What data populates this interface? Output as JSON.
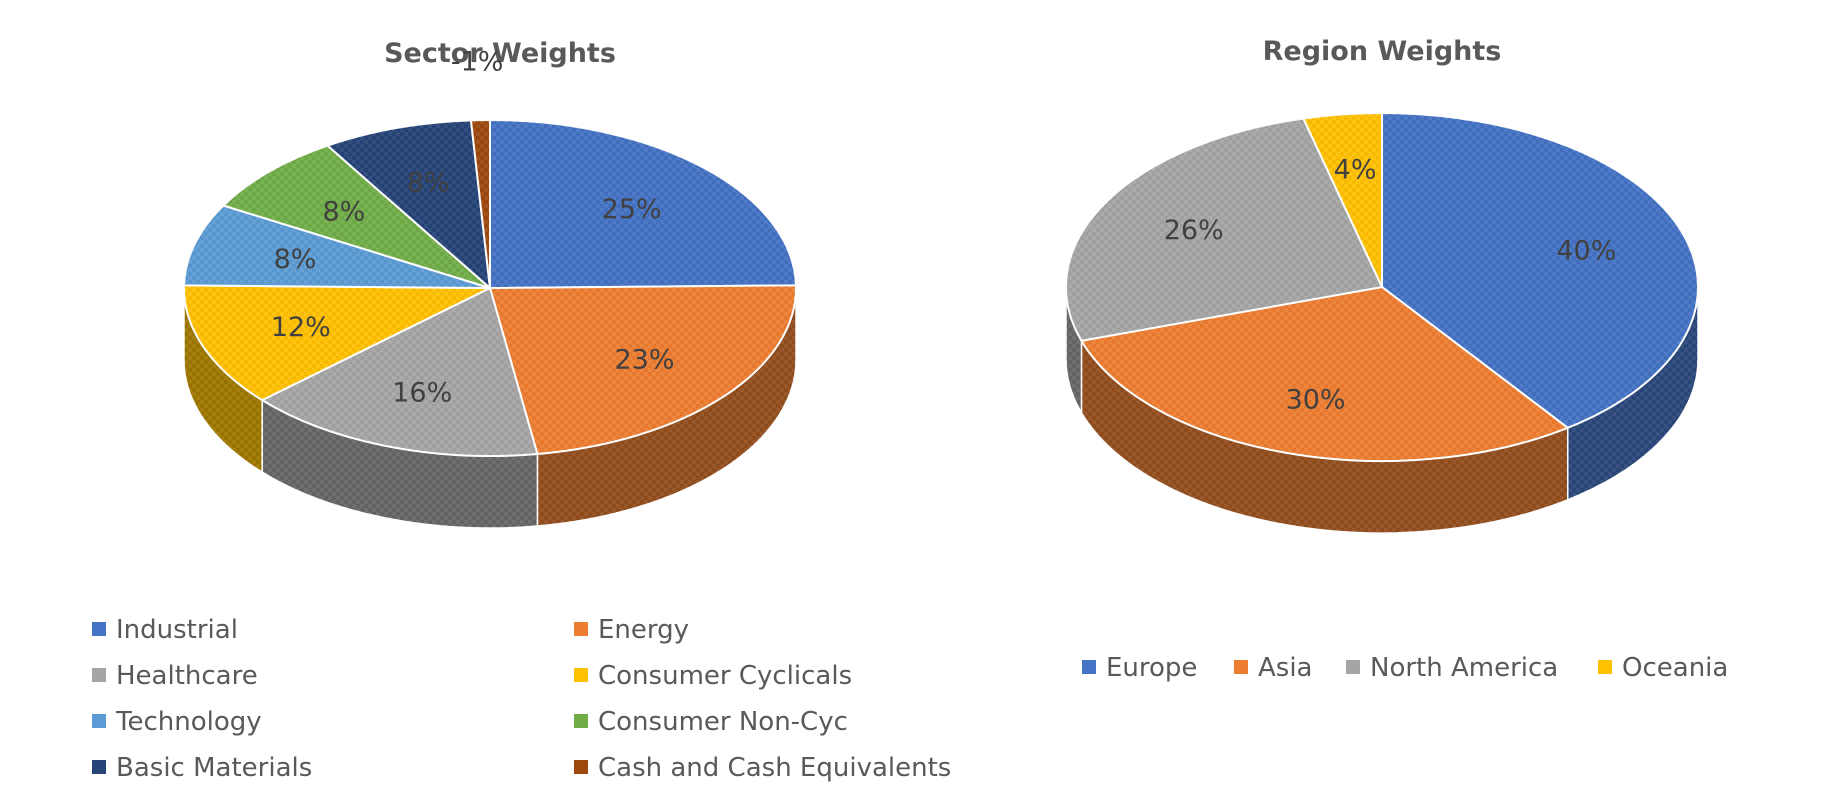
{
  "chart_data": [
    {
      "type": "pie",
      "title": "Sector Weights",
      "categories": [
        "Industrial",
        "Energy",
        "Healthcare",
        "Consumer Cyclicals",
        "Technology",
        "Consumer Non-Cyc",
        "Basic Materials",
        "Cash and Cash Equivalents"
      ],
      "values": [
        25,
        23,
        16,
        12,
        8,
        8,
        8,
        -1
      ],
      "labels": [
        "25%",
        "23%",
        "16%",
        "12%",
        "8%",
        "8%",
        "8%",
        "-1%"
      ],
      "colors": [
        "#4472C4",
        "#ED7D31",
        "#A5A5A5",
        "#FFC000",
        "#5B9BD5",
        "#70AD47",
        "#264478",
        "#9E480E"
      ],
      "legend_position": "bottom"
    },
    {
      "type": "pie",
      "title": "Region Weights",
      "categories": [
        "Europe",
        "Asia",
        "North America",
        "Oceania"
      ],
      "values": [
        40,
        30,
        26,
        4
      ],
      "labels": [
        "40%",
        "30%",
        "26%",
        "4%"
      ],
      "colors": [
        "#4472C4",
        "#ED7D31",
        "#A5A5A5",
        "#FFC000"
      ],
      "legend_position": "bottom"
    }
  ]
}
